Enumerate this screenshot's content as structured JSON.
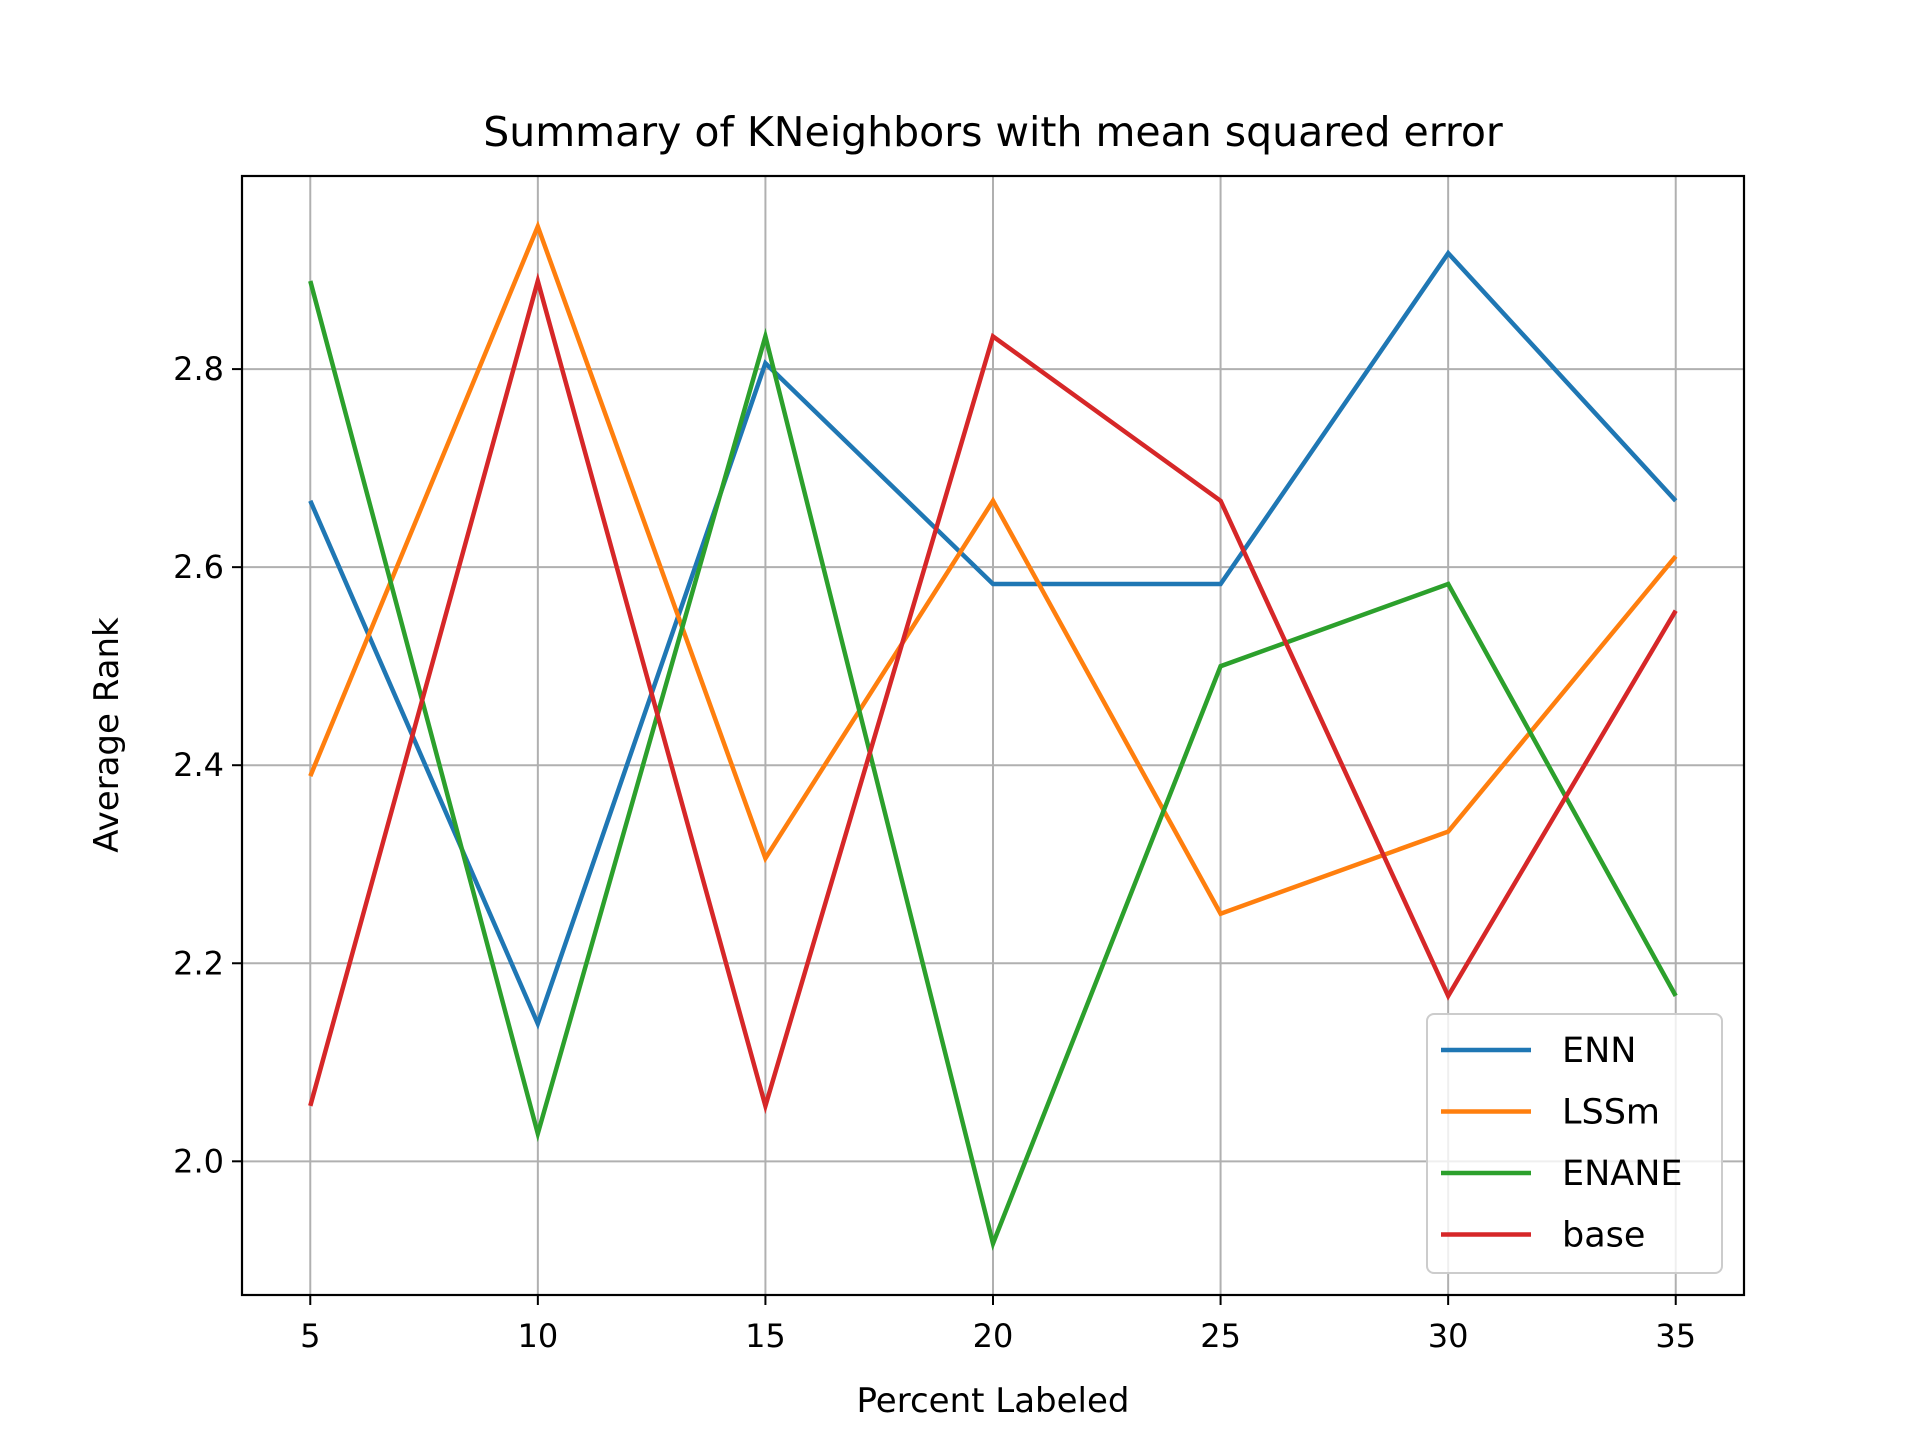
{
  "chart_data": {
    "type": "line",
    "title": "Summary of KNeighbors with mean squared error",
    "xlabel": "Percent Labeled",
    "ylabel": "Average Rank",
    "x": [
      5,
      10,
      15,
      20,
      25,
      30,
      35
    ],
    "x_ticks": [
      "5",
      "10",
      "15",
      "20",
      "25",
      "30",
      "35"
    ],
    "y_ticks": [
      "2.0",
      "2.2",
      "2.4",
      "2.6",
      "2.8"
    ],
    "y_tick_values": [
      2.0,
      2.2,
      2.4,
      2.6,
      2.8
    ],
    "xlim": [
      3.5,
      36.5
    ],
    "ylim": [
      1.865,
      2.995
    ],
    "grid": true,
    "legend_position": "lower-right",
    "series": [
      {
        "name": "ENN",
        "color": "#1f77b4",
        "values": [
          2.667,
          2.139,
          2.806,
          2.583,
          2.583,
          2.917,
          2.667
        ]
      },
      {
        "name": "LSSm",
        "color": "#ff7f0e",
        "values": [
          2.389,
          2.944,
          2.306,
          2.667,
          2.25,
          2.333,
          2.611
        ]
      },
      {
        "name": "ENANE",
        "color": "#2ca02c",
        "values": [
          2.889,
          2.028,
          2.833,
          1.917,
          2.5,
          2.583,
          2.167
        ]
      },
      {
        "name": "base",
        "color": "#d62728",
        "values": [
          2.056,
          2.889,
          2.056,
          2.833,
          2.667,
          2.167,
          2.556
        ]
      }
    ]
  }
}
